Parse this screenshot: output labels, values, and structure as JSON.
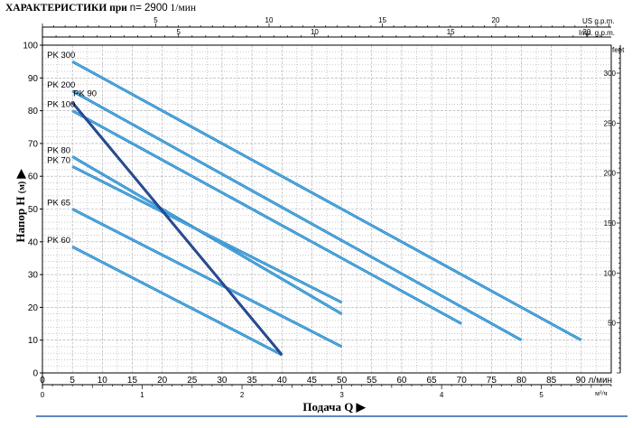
{
  "header": {
    "title_main": "ХАРАКТЕРИСТИКИ при",
    "title_rpm": "n= 2900",
    "title_unit": "1/мин"
  },
  "axes": {
    "y_label_main": "Напор H",
    "y_label_unit": "(м)",
    "y_label_arrow": "▶",
    "x_label_main": "Подача Q",
    "x_label_arrow": "▶"
  },
  "chart_data": {
    "type": "line",
    "title": "ХАРАКТЕРИСТИКИ при n= 2900 1/мин",
    "xlabel": "Подача Q",
    "ylabel": "Напор H (м)",
    "grid": true,
    "legend": "labels at left end of each curve",
    "xlim": [
      0,
      95
    ],
    "ylim": [
      0,
      100
    ],
    "x_unit": "л/мин",
    "y_unit": "м",
    "x_ticks": [
      "0",
      "5",
      "10",
      "15",
      "20",
      "25",
      "30",
      "35",
      "40",
      "45",
      "50",
      "55",
      "60",
      "65",
      "70",
      "75",
      "80",
      "85",
      "90"
    ],
    "x_last_tick_label": "90 л/мин",
    "y_ticks": [
      "0",
      "10",
      "20",
      "30",
      "40",
      "50",
      "60",
      "70",
      "80",
      "90",
      "100"
    ],
    "secondary_axes": {
      "bottom_m3h": {
        "unit": "м³/ч",
        "range": [
          0,
          5.7
        ],
        "ticks": [
          "0",
          "1",
          "2",
          "3",
          "4",
          "5"
        ]
      },
      "top_us_gpm": {
        "unit": "US g.p.m.",
        "range": [
          0,
          25.1
        ],
        "ticks": [
          "5",
          "10",
          "15",
          "20"
        ]
      },
      "top_imp_gpm": {
        "unit": "Imp. g.p.m.",
        "range": [
          0,
          20.9
        ],
        "ticks": [
          "5",
          "10",
          "15",
          "20"
        ]
      },
      "right_feet": {
        "unit": "feet",
        "range": [
          0,
          328
        ],
        "ticks": [
          "50",
          "100",
          "150",
          "200",
          "250",
          "300"
        ]
      }
    },
    "series": [
      {
        "name": "PK 300",
        "x": [
          5,
          90
        ],
        "y": [
          95,
          10
        ]
      },
      {
        "name": "PK 200",
        "x": [
          5,
          80
        ],
        "y": [
          86,
          10
        ]
      },
      {
        "name": "PK 100",
        "x": [
          5,
          70
        ],
        "y": [
          80,
          15
        ]
      },
      {
        "name": "PK 80",
        "x": [
          5,
          50
        ],
        "y": [
          66,
          18
        ]
      },
      {
        "name": "PK 70",
        "x": [
          5,
          50
        ],
        "y": [
          63,
          21.5
        ]
      },
      {
        "name": "PK 65",
        "x": [
          5,
          50
        ],
        "y": [
          50,
          8
        ]
      },
      {
        "name": "PK 60",
        "x": [
          5,
          40
        ],
        "y": [
          38.5,
          5.5
        ]
      },
      {
        "name": "PK 90",
        "x": [
          5,
          40
        ],
        "y": [
          82.5,
          5.5
        ]
      }
    ],
    "colors": {
      "curve": "#2d8ccc",
      "pk90": "#1f3f80",
      "grid": "#a8a8a8"
    }
  }
}
